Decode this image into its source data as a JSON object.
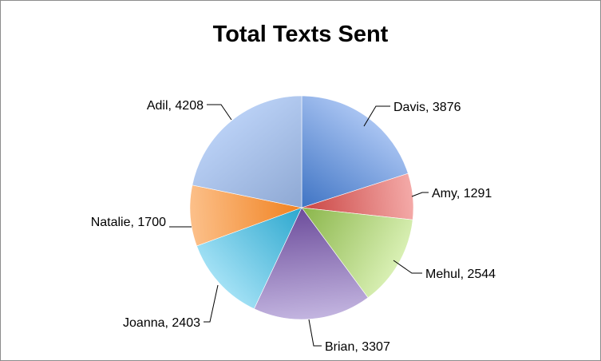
{
  "chart_data": {
    "type": "pie",
    "title": "Total Texts Sent",
    "start_angle_deg": 0,
    "direction": "clockwise",
    "data_label_format": "{category}, {value}",
    "slices": [
      {
        "category": "Davis",
        "value": 3876,
        "color_light": "#a9c4f2",
        "color_dark": "#3f74c4"
      },
      {
        "category": "Amy",
        "value": 1291,
        "color_light": "#f4aaa8",
        "color_dark": "#c94442"
      },
      {
        "category": "Mehul",
        "value": 2544,
        "color_light": "#d9f0b4",
        "color_dark": "#8ab54a"
      },
      {
        "category": "Brian",
        "value": 3307,
        "color_light": "#c3b5e0",
        "color_dark": "#6c4c9b"
      },
      {
        "category": "Joanna",
        "value": 2403,
        "color_light": "#a3e1f5",
        "color_dark": "#2ca7ce"
      },
      {
        "category": "Natalie",
        "value": 1700,
        "color_light": "#fcc08a",
        "color_dark": "#f0811f"
      },
      {
        "category": "Adil",
        "value": 4208,
        "color_light": "#b9d0f5",
        "color_dark": "#8ea8d3"
      }
    ]
  }
}
